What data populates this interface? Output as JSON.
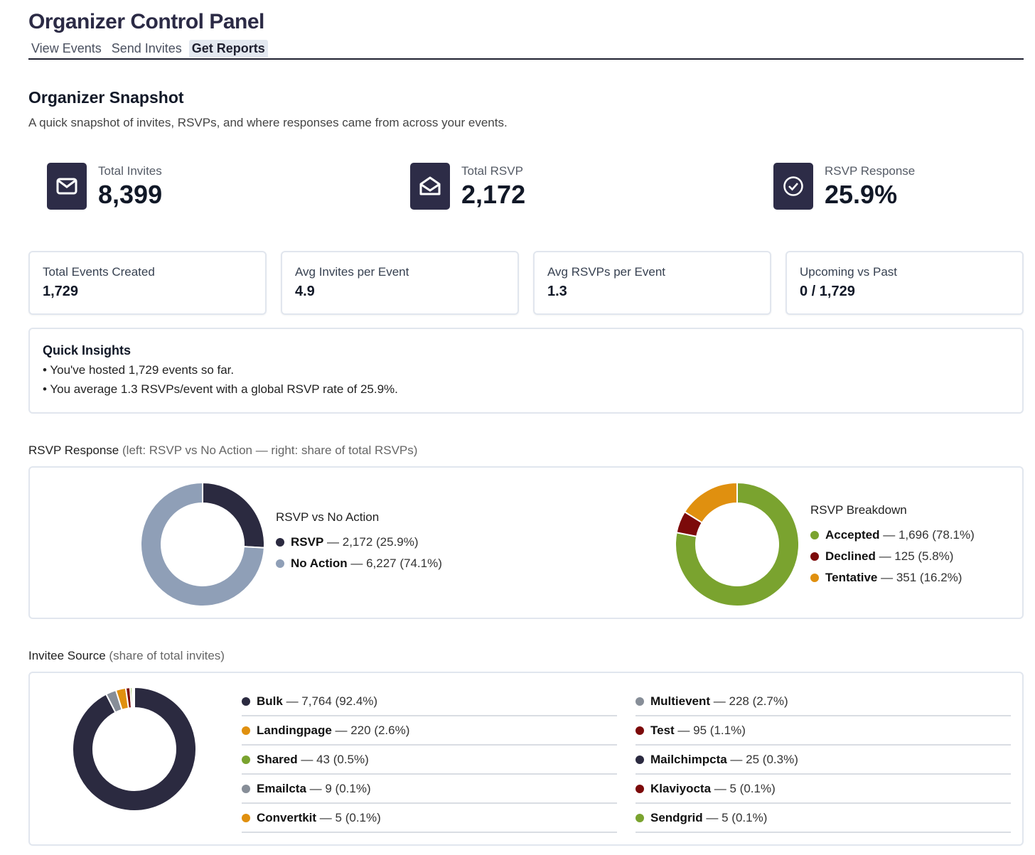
{
  "header": {
    "title": "Organizer Control Panel",
    "tabs": [
      {
        "label": "View Events"
      },
      {
        "label": "Send Invites"
      },
      {
        "label": "Get Reports"
      }
    ]
  },
  "snapshot": {
    "title": "Organizer Snapshot",
    "subtitle": "A quick snapshot of invites, RSVPs, and where responses came from across your events."
  },
  "stats": [
    {
      "label": "Total Invites",
      "value": "8,399",
      "icon": "envelope-icon"
    },
    {
      "label": "Total RSVP",
      "value": "2,172",
      "icon": "envelope-open-icon"
    },
    {
      "label": "RSVP Response",
      "value": "25.9%",
      "icon": "check-circle-icon"
    }
  ],
  "cards": [
    {
      "label": "Total Events Created",
      "value": "1,729"
    },
    {
      "label": "Avg Invites per Event",
      "value": "4.9"
    },
    {
      "label": "Avg RSVPs per Event",
      "value": "1.3"
    },
    {
      "label": "Upcoming vs Past",
      "value": "0 / 1,729"
    }
  ],
  "insights": {
    "title": "Quick Insights",
    "items": [
      "• You've hosted 1,729 events so far.",
      "• You average 1.3 RSVPs/event with a global RSVP rate of 25.9%."
    ]
  },
  "rsvp_section": {
    "title": "RSVP Response",
    "note": "(left: RSVP vs No Action — right: share of total RSVPs)"
  },
  "source_section": {
    "title": "Invitee Source",
    "note": "(share of total invites)"
  },
  "chart_data": [
    {
      "type": "pie",
      "title": "RSVP vs No Action",
      "slices": [
        {
          "name": "RSVP",
          "value": 2172,
          "text": " — 2,172 (25.9%)",
          "color": "#2b2a40"
        },
        {
          "name": "No Action",
          "value": 6227,
          "text": " — 6,227 (74.1%)",
          "color": "#8f9fb7"
        }
      ]
    },
    {
      "type": "pie",
      "title": "RSVP Breakdown",
      "slices": [
        {
          "name": "Accepted",
          "value": 1696,
          "text": " — 1,696 (78.1%)",
          "color": "#7aa32f"
        },
        {
          "name": "Declined",
          "value": 125,
          "text": " — 125 (5.8%)",
          "color": "#7c0a0a"
        },
        {
          "name": "Tentative",
          "value": 351,
          "text": " — 351 (16.2%)",
          "color": "#e0900f"
        }
      ]
    },
    {
      "type": "pie",
      "title": "Invitee Source",
      "slices": [
        {
          "name": "Bulk",
          "value": 7764,
          "text": " — 7,764 (92.4%)",
          "color": "#2b2a40"
        },
        {
          "name": "Multievent",
          "value": 228,
          "text": " — 228 (2.7%)",
          "color": "#878e98"
        },
        {
          "name": "Landingpage",
          "value": 220,
          "text": " — 220 (2.6%)",
          "color": "#e0900f"
        },
        {
          "name": "Test",
          "value": 95,
          "text": " — 95 (1.1%)",
          "color": "#7c0a0a"
        },
        {
          "name": "Shared",
          "value": 43,
          "text": " — 43 (0.5%)",
          "color": "#7aa32f"
        },
        {
          "name": "Mailchimpcta",
          "value": 25,
          "text": " — 25 (0.3%)",
          "color": "#2b2a40"
        },
        {
          "name": "Emailcta",
          "value": 9,
          "text": " — 9 (0.1%)",
          "color": "#878e98"
        },
        {
          "name": "Klaviyocta",
          "value": 5,
          "text": " — 5 (0.1%)",
          "color": "#7c0a0a"
        },
        {
          "name": "Convertkit",
          "value": 5,
          "text": " — 5 (0.1%)",
          "color": "#e0900f"
        },
        {
          "name": "Sendgrid",
          "value": 5,
          "text": " — 5 (0.1%)",
          "color": "#7aa32f"
        }
      ]
    }
  ]
}
